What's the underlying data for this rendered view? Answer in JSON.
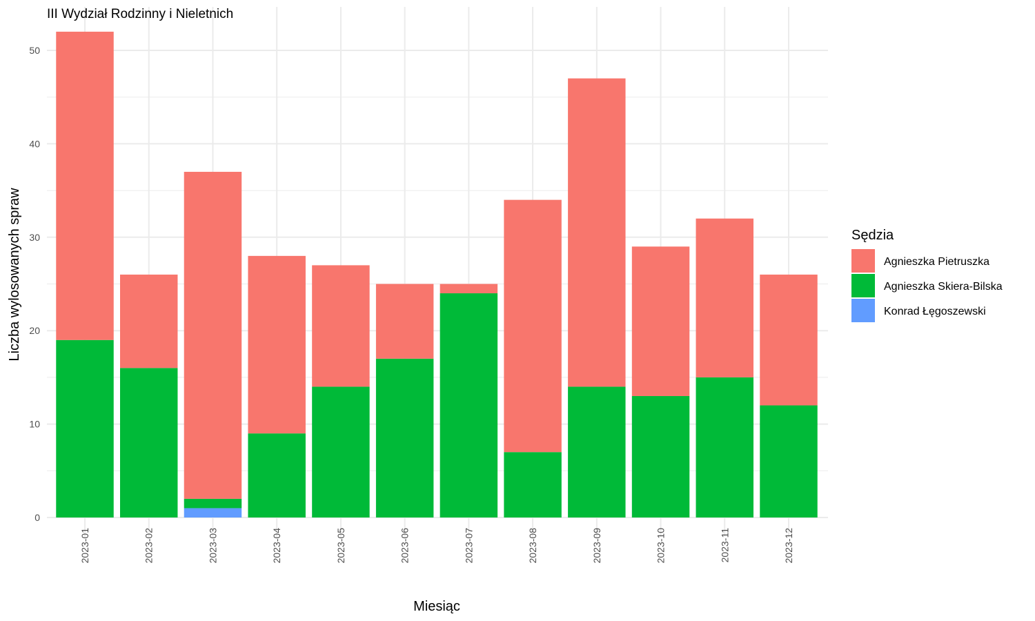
{
  "chart_data": {
    "type": "bar",
    "stacked": true,
    "title": "III Wydział Rodzinny i Nieletnich",
    "xlabel": "Miesiąc",
    "ylabel": "Liczba wylosowanych spraw",
    "ylim": [
      0,
      53
    ],
    "yticks": [
      0,
      10,
      20,
      30,
      40,
      50
    ],
    "grid": true,
    "legend_title": "Sędzia",
    "legend_position": "right",
    "categories": [
      "2023-01",
      "2023-02",
      "2023-03",
      "2023-04",
      "2023-05",
      "2023-06",
      "2023-07",
      "2023-08",
      "2023-09",
      "2023-10",
      "2023-11",
      "2023-12"
    ],
    "series": [
      {
        "name": "Konrad Łęgoszewski",
        "color": "#619CFF",
        "values": [
          0,
          0,
          1,
          0,
          0,
          0,
          0,
          0,
          0,
          0,
          0,
          0
        ]
      },
      {
        "name": "Agnieszka Skiera-Bilska",
        "color": "#00BA38",
        "values": [
          19,
          16,
          1,
          9,
          14,
          17,
          24,
          7,
          14,
          13,
          15,
          12
        ]
      },
      {
        "name": "Agnieszka Pietruszka",
        "color": "#F8766D",
        "values": [
          33,
          10,
          35,
          19,
          13,
          8,
          1,
          27,
          33,
          16,
          17,
          14
        ]
      }
    ],
    "legend_order": [
      "Agnieszka Pietruszka",
      "Agnieszka Skiera-Bilska",
      "Konrad Łęgoszewski"
    ]
  }
}
